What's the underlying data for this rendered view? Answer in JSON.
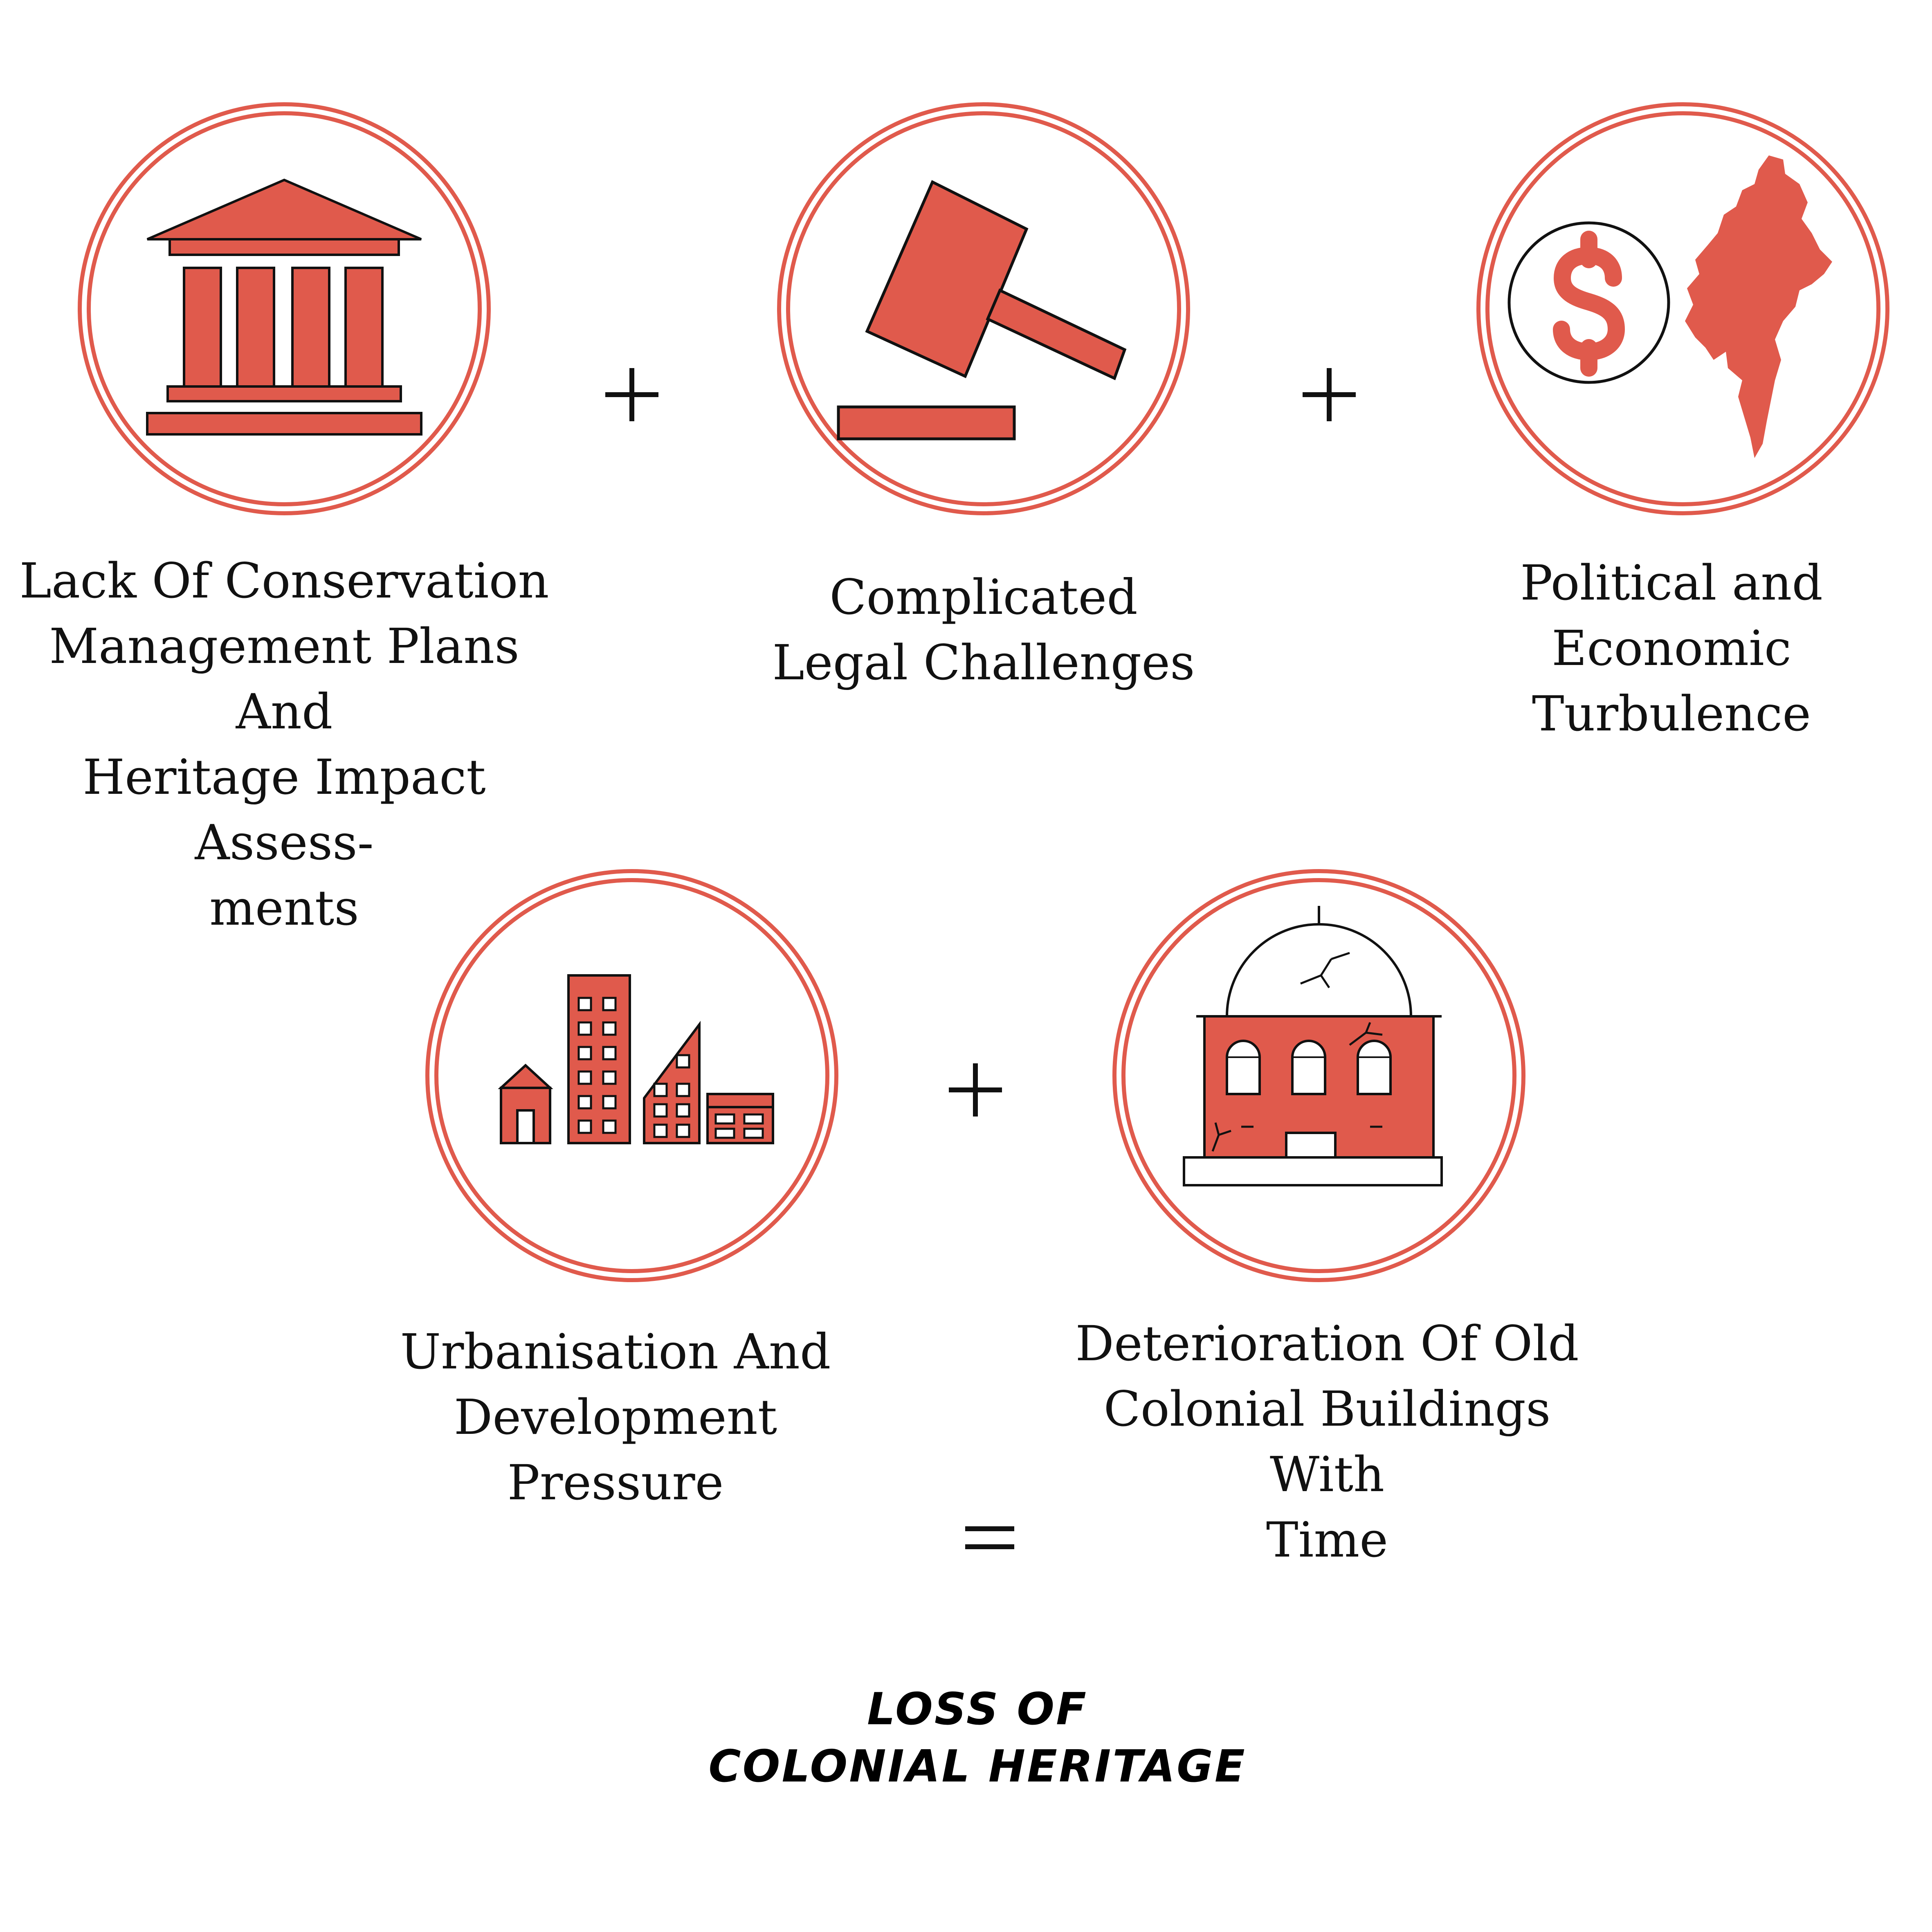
{
  "colors": {
    "accent": "#e05a4c",
    "outline": "#111111",
    "background": "#ffffff"
  },
  "factors": [
    {
      "id": "conservation",
      "icon": "institution-building-icon",
      "label": "Lack Of Conservation\nManagement Plans And\nHeritage Impact Assess-\nments"
    },
    {
      "id": "legal",
      "icon": "gavel-icon",
      "label": "Complicated\nLegal Challenges"
    },
    {
      "id": "political",
      "icon": "dollar-myanmar-map-icon",
      "label": "Political and\nEconomic Turbulence"
    },
    {
      "id": "urbanisation",
      "icon": "city-buildings-icon",
      "label": "Urbanisation And\nDevelopment Pressure"
    },
    {
      "id": "deterioration",
      "icon": "cracked-colonial-building-icon",
      "label": "Deterioration Of Old\nColonial Buildings With\nTime"
    }
  ],
  "operators": {
    "plus": "+",
    "equals": "="
  },
  "result": {
    "line1": "LOSS OF",
    "line2": "COLONIAL HERITAGE"
  }
}
